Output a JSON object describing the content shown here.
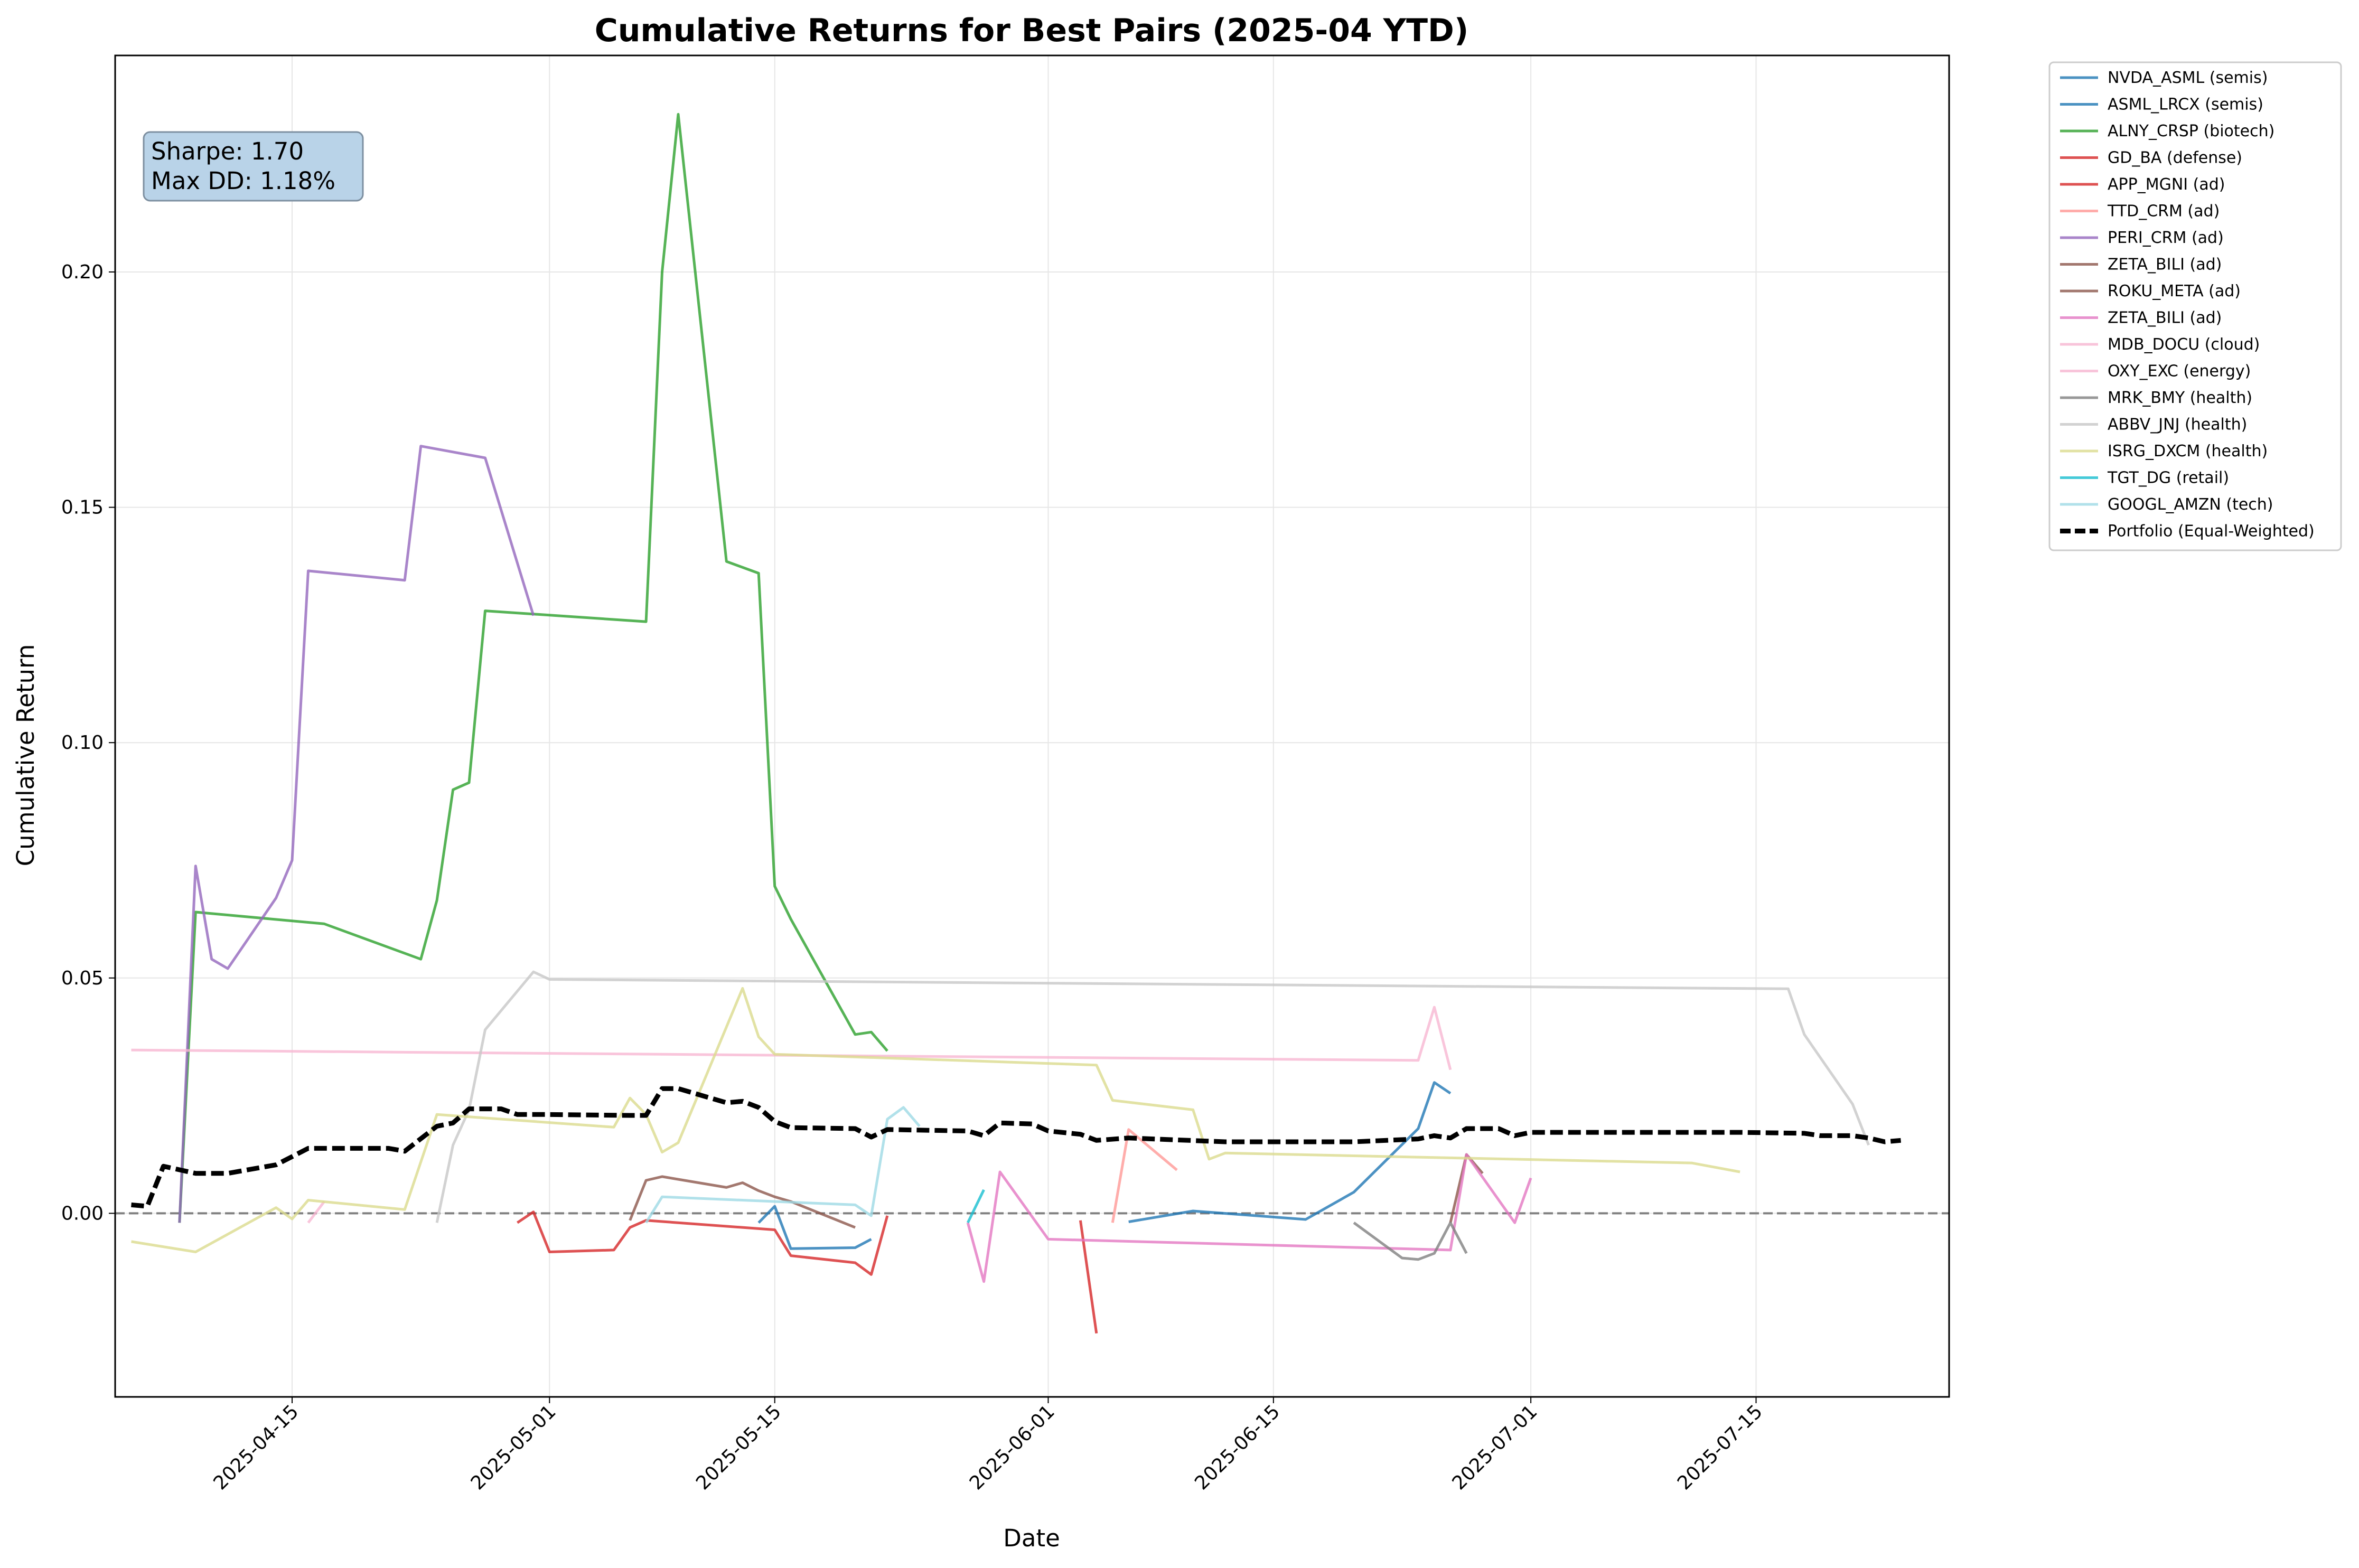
{
  "chart_data": {
    "type": "line",
    "title": "Cumulative Returns for Best Pairs (2025-04 YTD)",
    "xlabel": "Date",
    "ylabel": "Cumulative Return",
    "xlim": [
      "2025-04-04",
      "2025-07-27"
    ],
    "ylim": [
      -0.039,
      0.246
    ],
    "x_ticks": [
      "2025-04-15",
      "2025-05-01",
      "2025-05-15",
      "2025-06-01",
      "2025-06-15",
      "2025-07-01",
      "2025-07-15"
    ],
    "y_ticks": [
      0.0,
      0.05,
      0.1,
      0.15,
      0.2
    ],
    "y_tick_labels": [
      "0.00",
      "0.05",
      "0.10",
      "0.15",
      "0.20"
    ],
    "grid": true,
    "legend_position": "outside-right-top",
    "zero_line": {
      "y": 0.0,
      "style": "dashed",
      "color": "#808080"
    },
    "stats_box": {
      "sharpe": "Sharpe: 1.70",
      "max_dd": "Max DD: 1.18%"
    },
    "series": [
      {
        "name": "NVDA_ASML (semis)",
        "color": "#1f77b4",
        "points": [
          [
            "2025-06-06",
            -0.0018
          ],
          [
            "2025-06-10",
            0.0005
          ],
          [
            "2025-06-17",
            -0.0013
          ],
          [
            "2025-06-20",
            0.0045
          ],
          [
            "2025-06-24",
            0.018
          ],
          [
            "2025-06-25",
            0.0278
          ],
          [
            "2025-06-26",
            0.0255
          ]
        ]
      },
      {
        "name": "ASML_LRCX (semis)",
        "color": "#1f77b4",
        "points": [
          [
            "2025-05-14",
            -0.002
          ],
          [
            "2025-05-15",
            0.0015
          ],
          [
            "2025-05-16",
            -0.0075
          ],
          [
            "2025-05-20",
            -0.0073
          ],
          [
            "2025-05-21",
            -0.0055
          ]
        ]
      },
      {
        "name": "ALNY_CRSP (biotech)",
        "color": "#2ca02c",
        "points": [
          [
            "2025-04-08",
            -0.002
          ],
          [
            "2025-04-09",
            0.064
          ],
          [
            "2025-04-17",
            0.0615
          ],
          [
            "2025-04-23",
            0.054
          ],
          [
            "2025-04-24",
            0.0665
          ],
          [
            "2025-04-25",
            0.09
          ],
          [
            "2025-04-26",
            0.0915
          ],
          [
            "2025-04-27",
            0.128
          ],
          [
            "2025-05-07",
            0.1257
          ],
          [
            "2025-05-08",
            0.2
          ],
          [
            "2025-05-09",
            0.2335
          ],
          [
            "2025-05-12",
            0.1385
          ],
          [
            "2025-05-14",
            0.136
          ],
          [
            "2025-05-15",
            0.0695
          ],
          [
            "2025-05-16",
            0.0625
          ],
          [
            "2025-05-20",
            0.038
          ],
          [
            "2025-05-21",
            0.0385
          ],
          [
            "2025-05-22",
            0.0345
          ]
        ]
      },
      {
        "name": "GD_BA (defense)",
        "color": "#d62728",
        "points": [
          [
            "2025-04-29",
            -0.002
          ],
          [
            "2025-04-30",
            0.0003
          ],
          [
            "2025-05-01",
            -0.0082
          ],
          [
            "2025-05-05",
            -0.0078
          ],
          [
            "2025-05-06",
            -0.003
          ],
          [
            "2025-05-07",
            -0.0015
          ],
          [
            "2025-05-15",
            -0.0035
          ],
          [
            "2025-05-16",
            -0.009
          ],
          [
            "2025-05-20",
            -0.0105
          ],
          [
            "2025-05-21",
            -0.013
          ],
          [
            "2025-05-22",
            -0.0005
          ]
        ]
      },
      {
        "name": "APP_MGNI (ad)",
        "color": "#d62728",
        "points": [
          [
            "2025-06-03",
            -0.0015
          ],
          [
            "2025-06-04",
            -0.0255
          ]
        ]
      },
      {
        "name": "TTD_CRM (ad)",
        "color": "#ff9896",
        "points": [
          [
            "2025-06-05",
            -0.002
          ],
          [
            "2025-06-06",
            0.0178
          ],
          [
            "2025-06-09",
            0.0092
          ]
        ]
      },
      {
        "name": "PERI_CRM (ad)",
        "color": "#9467bd",
        "points": [
          [
            "2025-04-08",
            -0.002
          ],
          [
            "2025-04-09",
            0.0738
          ],
          [
            "2025-04-10",
            0.054
          ],
          [
            "2025-04-11",
            0.052
          ],
          [
            "2025-04-14",
            0.067
          ],
          [
            "2025-04-15",
            0.075
          ],
          [
            "2025-04-16",
            0.1365
          ],
          [
            "2025-04-22",
            0.1345
          ],
          [
            "2025-04-23",
            0.163
          ],
          [
            "2025-04-27",
            0.1605
          ],
          [
            "2025-04-30",
            0.127
          ]
        ]
      },
      {
        "name": "ZETA_BILI (ad)",
        "color": "#8c564b",
        "points": [
          [
            "2025-05-06",
            -0.0015
          ],
          [
            "2025-05-07",
            0.007
          ],
          [
            "2025-05-08",
            0.0078
          ],
          [
            "2025-05-12",
            0.0055
          ],
          [
            "2025-05-13",
            0.0065
          ],
          [
            "2025-05-14",
            0.0048
          ],
          [
            "2025-05-15",
            0.0035
          ],
          [
            "2025-05-16",
            0.0025
          ],
          [
            "2025-05-20",
            -0.003
          ]
        ]
      },
      {
        "name": "ROKU_META (ad)",
        "color": "#8c564b",
        "points": [
          [
            "2025-06-26",
            -0.002
          ],
          [
            "2025-06-27",
            0.0125
          ],
          [
            "2025-06-28",
            0.0085
          ]
        ]
      },
      {
        "name": "ZETA_BILI (ad)",
        "color": "#e377c2",
        "points": [
          [
            "2025-05-27",
            -0.002
          ],
          [
            "2025-05-28",
            -0.0145
          ],
          [
            "2025-05-29",
            0.0088
          ],
          [
            "2025-06-01",
            -0.0055
          ],
          [
            "2025-06-26",
            -0.0078
          ],
          [
            "2025-06-27",
            0.0125
          ],
          [
            "2025-06-30",
            -0.002
          ],
          [
            "2025-07-01",
            0.0075
          ]
        ]
      },
      {
        "name": "MDB_DOCU (cloud)",
        "color": "#f7b6d2",
        "points": [
          [
            "2025-04-05",
            0.0347
          ],
          [
            "2025-06-24",
            0.0325
          ],
          [
            "2025-06-25",
            0.0438
          ],
          [
            "2025-06-26",
            0.0305
          ]
        ]
      },
      {
        "name": "OXY_EXC (energy)",
        "color": "#f7b6d2",
        "points": [
          [
            "2025-04-16",
            -0.002
          ],
          [
            "2025-04-17",
            0.0025
          ]
        ]
      },
      {
        "name": "MRK_BMY (health)",
        "color": "#7f7f7f",
        "points": [
          [
            "2025-06-20",
            -0.002
          ],
          [
            "2025-06-23",
            -0.0095
          ],
          [
            "2025-06-24",
            -0.0098
          ],
          [
            "2025-06-25",
            -0.0085
          ],
          [
            "2025-06-26",
            -0.002
          ],
          [
            "2025-06-27",
            -0.0085
          ]
        ]
      },
      {
        "name": "ABBV_JNJ (health)",
        "color": "#c7c7c7",
        "points": [
          [
            "2025-04-24",
            -0.002
          ],
          [
            "2025-04-25",
            0.0145
          ],
          [
            "2025-04-26",
            0.022
          ],
          [
            "2025-04-27",
            0.039
          ],
          [
            "2025-04-30",
            0.0513
          ],
          [
            "2025-05-01",
            0.0497
          ],
          [
            "2025-07-17",
            0.0477
          ],
          [
            "2025-07-18",
            0.038
          ],
          [
            "2025-07-21",
            0.0232
          ],
          [
            "2025-07-22",
            0.0145
          ]
        ]
      },
      {
        "name": "ISRG_DXCM (health)",
        "color": "#dbdb8d",
        "points": [
          [
            "2025-04-05",
            -0.006
          ],
          [
            "2025-04-09",
            -0.0082
          ],
          [
            "2025-04-14",
            0.0012
          ],
          [
            "2025-04-15",
            -0.0012
          ],
          [
            "2025-04-16",
            0.0028
          ],
          [
            "2025-04-22",
            0.0008
          ],
          [
            "2025-04-24",
            0.021
          ],
          [
            "2025-05-05",
            0.0183
          ],
          [
            "2025-05-06",
            0.0245
          ],
          [
            "2025-05-07",
            0.021
          ],
          [
            "2025-05-08",
            0.013
          ],
          [
            "2025-05-09",
            0.015
          ],
          [
            "2025-05-13",
            0.0478
          ],
          [
            "2025-05-14",
            0.0375
          ],
          [
            "2025-05-15",
            0.0338
          ],
          [
            "2025-06-04",
            0.0315
          ],
          [
            "2025-06-05",
            0.024
          ],
          [
            "2025-06-10",
            0.022
          ],
          [
            "2025-06-11",
            0.0115
          ],
          [
            "2025-06-12",
            0.0128
          ],
          [
            "2025-07-11",
            0.0107
          ],
          [
            "2025-07-14",
            0.0088
          ]
        ]
      },
      {
        "name": "TGT_DG (retail)",
        "color": "#17becf",
        "points": [
          [
            "2025-05-27",
            -0.002
          ],
          [
            "2025-05-28",
            0.005
          ]
        ]
      },
      {
        "name": "GOOGL_AMZN (tech)",
        "color": "#9edae5",
        "points": [
          [
            "2025-05-07",
            -0.002
          ],
          [
            "2025-05-08",
            0.0035
          ],
          [
            "2025-05-20",
            0.0018
          ],
          [
            "2025-05-21",
            -0.0005
          ],
          [
            "2025-05-22",
            0.02
          ],
          [
            "2025-05-23",
            0.0225
          ],
          [
            "2025-05-24",
            0.0185
          ]
        ]
      },
      {
        "name": "Portfolio (Equal-Weighted)",
        "color": "#000000",
        "dashed": true,
        "points": [
          [
            "2025-04-05",
            0.0018
          ],
          [
            "2025-04-06",
            0.0015
          ],
          [
            "2025-04-07",
            0.01
          ],
          [
            "2025-04-09",
            0.0085
          ],
          [
            "2025-04-11",
            0.0085
          ],
          [
            "2025-04-14",
            0.0103
          ],
          [
            "2025-04-16",
            0.0138
          ],
          [
            "2025-04-21",
            0.0138
          ],
          [
            "2025-04-22",
            0.0132
          ],
          [
            "2025-04-24",
            0.0185
          ],
          [
            "2025-04-25",
            0.0192
          ],
          [
            "2025-04-26",
            0.0222
          ],
          [
            "2025-04-28",
            0.0222
          ],
          [
            "2025-04-29",
            0.021
          ],
          [
            "2025-05-01",
            0.021
          ],
          [
            "2025-05-06",
            0.0208
          ],
          [
            "2025-05-07",
            0.0208
          ],
          [
            "2025-05-08",
            0.0265
          ],
          [
            "2025-05-09",
            0.0265
          ],
          [
            "2025-05-12",
            0.0235
          ],
          [
            "2025-05-13",
            0.0238
          ],
          [
            "2025-05-14",
            0.0225
          ],
          [
            "2025-05-15",
            0.0195
          ],
          [
            "2025-05-16",
            0.0182
          ],
          [
            "2025-05-20",
            0.018
          ],
          [
            "2025-05-21",
            0.0162
          ],
          [
            "2025-05-22",
            0.0178
          ],
          [
            "2025-05-27",
            0.0175
          ],
          [
            "2025-05-28",
            0.0165
          ],
          [
            "2025-05-29",
            0.0192
          ],
          [
            "2025-05-31",
            0.019
          ],
          [
            "2025-06-01",
            0.0175
          ],
          [
            "2025-06-03",
            0.0168
          ],
          [
            "2025-06-04",
            0.0155
          ],
          [
            "2025-06-06",
            0.016
          ],
          [
            "2025-06-12",
            0.0152
          ],
          [
            "2025-06-17",
            0.0152
          ],
          [
            "2025-06-20",
            0.0152
          ],
          [
            "2025-06-24",
            0.0158
          ],
          [
            "2025-06-25",
            0.0165
          ],
          [
            "2025-06-26",
            0.016
          ],
          [
            "2025-06-27",
            0.018
          ],
          [
            "2025-06-29",
            0.018
          ],
          [
            "2025-06-30",
            0.0165
          ],
          [
            "2025-07-01",
            0.0172
          ],
          [
            "2025-07-11",
            0.0172
          ],
          [
            "2025-07-14",
            0.0172
          ],
          [
            "2025-07-18",
            0.017
          ],
          [
            "2025-07-19",
            0.0165
          ],
          [
            "2025-07-21",
            0.0165
          ],
          [
            "2025-07-22",
            0.016
          ],
          [
            "2025-07-23",
            0.0152
          ],
          [
            "2025-07-24",
            0.0155
          ]
        ]
      }
    ]
  }
}
